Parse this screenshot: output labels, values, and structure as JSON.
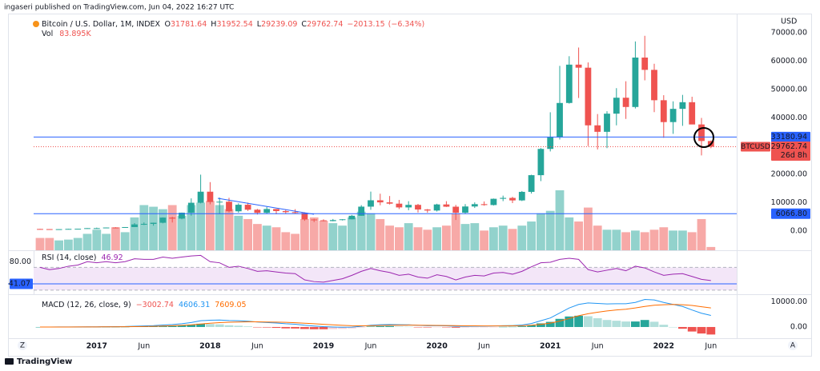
{
  "header": "ingaseri published on TradingView.com, Jun 04, 2022 16:27 UTC",
  "footer": "TradingView",
  "buttons": [
    "Z",
    "A"
  ],
  "chart_data": [
    {
      "type": "candlestick",
      "title": "Bitcoin / U.S. Dollar, 1M, INDEX",
      "axis_unit": "USD",
      "ohlc_labels": [
        "O",
        "H",
        "L",
        "C"
      ],
      "change": {
        "value": -2013.15,
        "label": "−2013.15"
      },
      "change_pct": {
        "value": -6.34,
        "label": "(−6.34%)"
      },
      "volume_name": "Vol",
      "volume_value_label": "83.895K",
      "up_color": "#26a69a",
      "down_color": "#ef5350",
      "volume_up_color": "#92d2cc",
      "volume_down_color": "#f7a9a7",
      "x": [
        "2016-07",
        "2016-08",
        "2016-09",
        "2016-10",
        "2016-11",
        "2016-12",
        "2017-01",
        "2017-02",
        "2017-03",
        "2017-04",
        "2017-05",
        "2017-06",
        "2017-07",
        "2017-08",
        "2017-09",
        "2017-10",
        "2017-11",
        "2017-12",
        "2018-01",
        "2018-02",
        "2018-03",
        "2018-04",
        "2018-05",
        "2018-06",
        "2018-07",
        "2018-08",
        "2018-09",
        "2018-10",
        "2018-11",
        "2018-12",
        "2019-01",
        "2019-02",
        "2019-03",
        "2019-04",
        "2019-05",
        "2019-06",
        "2019-07",
        "2019-08",
        "2019-09",
        "2019-10",
        "2019-11",
        "2019-12",
        "2020-01",
        "2020-02",
        "2020-03",
        "2020-04",
        "2020-05",
        "2020-06",
        "2020-07",
        "2020-08",
        "2020-09",
        "2020-10",
        "2020-11",
        "2020-12",
        "2021-01",
        "2021-02",
        "2021-03",
        "2021-04",
        "2021-05",
        "2021-06",
        "2021-07",
        "2021-08",
        "2021-09",
        "2021-10",
        "2021-11",
        "2021-12",
        "2022-01",
        "2022-02",
        "2022-03",
        "2022-04",
        "2022-05",
        "2022-06"
      ],
      "open": [
        673,
        624,
        574,
        609,
        700,
        745,
        964,
        970,
        1190,
        1080,
        1350,
        2290,
        2480,
        2875,
        4700,
        4340,
        6440,
        9950,
        13860,
        10220,
        10320,
        6930,
        9240,
        7490,
        6390,
        7730,
        7010,
        6630,
        6370,
        4040,
        3740,
        3460,
        3820,
        4100,
        5350,
        8570,
        10820,
        10090,
        9630,
        8300,
        9200,
        7560,
        7200,
        9350,
        8550,
        6430,
        8630,
        9450,
        9140,
        11350,
        11660,
        10780,
        13800,
        19700,
        28990,
        33110,
        45240,
        58800,
        57720,
        37330,
        35040,
        41460,
        47100,
        43820,
        61300,
        56950,
        46210,
        38480,
        43160,
        45510,
        37640,
        31781.64
      ],
      "high": [
        704,
        626,
        629,
        720,
        752,
        980,
        1150,
        1210,
        1300,
        1350,
        2760,
        3000,
        2920,
        4770,
        5000,
        6470,
        11500,
        19890,
        17250,
        11790,
        11700,
        9760,
        10000,
        7760,
        8500,
        7760,
        7410,
        7680,
        6590,
        4290,
        4110,
        4210,
        4140,
        5640,
        9100,
        13880,
        13150,
        12330,
        10950,
        10500,
        9540,
        7750,
        9590,
        10500,
        9190,
        9470,
        10080,
        10400,
        11450,
        12470,
        12050,
        14100,
        19860,
        29300,
        41950,
        58350,
        61780,
        64850,
        59580,
        41330,
        42320,
        50480,
        52920,
        67000,
        69000,
        59100,
        47990,
        45820,
        48100,
        47450,
        39950,
        31952.54
      ],
      "low": [
        605,
        470,
        569,
        603,
        687,
        741,
        750,
        920,
        890,
        1060,
        1340,
        2070,
        1830,
        2670,
        2970,
        4110,
        5380,
        9730,
        9400,
        5950,
        6530,
        6440,
        7050,
        5780,
        6070,
        5880,
        6110,
        6180,
        3560,
        3120,
        3350,
        3390,
        3690,
        4070,
        5330,
        7450,
        9060,
        9330,
        7710,
        7300,
        6520,
        6430,
        6850,
        8460,
        3850,
        6150,
        8110,
        8900,
        8980,
        10520,
        9820,
        10550,
        13200,
        17600,
        28100,
        32300,
        45000,
        47000,
        30000,
        28800,
        29280,
        37330,
        39600,
        43290,
        53250,
        42000,
        32920,
        34320,
        37150,
        37690,
        26700,
        29239.09
      ],
      "close": [
        624,
        574,
        609,
        700,
        745,
        964,
        970,
        1190,
        1080,
        1350,
        2290,
        2480,
        2875,
        4700,
        4340,
        6440,
        9950,
        13860,
        10220,
        10320,
        6930,
        9240,
        7490,
        6390,
        7730,
        7010,
        6630,
        6370,
        4040,
        3740,
        3460,
        3820,
        4100,
        5350,
        8570,
        10820,
        10090,
        9630,
        8300,
        9200,
        7560,
        7200,
        9350,
        8550,
        6430,
        8630,
        9450,
        9140,
        11350,
        11660,
        10780,
        13800,
        19700,
        28990,
        33110,
        45240,
        58800,
        57720,
        37330,
        35040,
        41460,
        47100,
        43820,
        61300,
        56950,
        46210,
        38480,
        43160,
        45510,
        37640,
        31790,
        29762.74
      ],
      "volume": [
        315000,
        315000,
        252000,
        273000,
        315000,
        420000,
        525000,
        420000,
        588000,
        462000,
        840000,
        1155000,
        1113000,
        1050000,
        1155000,
        882000,
        1155000,
        1218000,
        1260000,
        1155000,
        1050000,
        882000,
        798000,
        672000,
        630000,
        588000,
        462000,
        420000,
        798000,
        840000,
        756000,
        693000,
        630000,
        840000,
        987000,
        945000,
        798000,
        630000,
        588000,
        693000,
        588000,
        525000,
        588000,
        630000,
        945000,
        672000,
        693000,
        504000,
        588000,
        630000,
        546000,
        630000,
        735000,
        945000,
        1008000,
        1533000,
        840000,
        735000,
        1092000,
        630000,
        525000,
        525000,
        462000,
        504000,
        462000,
        525000,
        588000,
        504000,
        504000,
        462000,
        798000,
        83895
      ],
      "ylim": [
        -6857,
        76571
      ],
      "yticks": [
        {
          "value": 0,
          "label": "0.00"
        },
        {
          "value": 10000,
          "label": "10000.00"
        },
        {
          "value": 20000,
          "label": "20000.00"
        },
        {
          "value": 40000,
          "label": "40000.00"
        },
        {
          "value": 50000,
          "label": "50000.00"
        },
        {
          "value": 60000,
          "label": "60000.00"
        },
        {
          "value": 70000,
          "label": "70000.00"
        }
      ],
      "xticks": [
        {
          "value": "2017-01",
          "label": "2017"
        },
        {
          "value": "2017-06",
          "label": "Jun"
        },
        {
          "value": "2018-01",
          "label": "2018"
        },
        {
          "value": "2018-06",
          "label": "Jun"
        },
        {
          "value": "2019-01",
          "label": "2019"
        },
        {
          "value": "2019-06",
          "label": "Jun"
        },
        {
          "value": "2020-01",
          "label": "2020"
        },
        {
          "value": "2020-06",
          "label": "Jun"
        },
        {
          "value": "2021-01",
          "label": "2021"
        },
        {
          "value": "2021-06",
          "label": "Jun"
        },
        {
          "value": "2022-01",
          "label": "2022"
        },
        {
          "value": "2022-06",
          "label": "Jun"
        }
      ],
      "price_lines": [
        {
          "value": 33180.94,
          "color": "#2962ff"
        },
        {
          "value": 6066.8,
          "label": "6066.80",
          "color": "#2962ff"
        }
      ],
      "symbol": "BTCUSD",
      "countdown": "26d 8h"
    },
    {
      "type": "line",
      "name": "RSI (14, close)",
      "color": "#9c27b0",
      "values": [
        70,
        66,
        68,
        72,
        74,
        80,
        78,
        80,
        78,
        80,
        85,
        84,
        84,
        88,
        86,
        88,
        90,
        91,
        80,
        78,
        70,
        72,
        68,
        63,
        64,
        62,
        60,
        59,
        48,
        45,
        44,
        47,
        50,
        56,
        63,
        68,
        64,
        61,
        56,
        58,
        53,
        51,
        57,
        54,
        48,
        53,
        56,
        55,
        60,
        61,
        58,
        63,
        71,
        78,
        79,
        84,
        86,
        84,
        66,
        62,
        65,
        68,
        64,
        72,
        69,
        62,
        56,
        58,
        59,
        54,
        49,
        46.92
      ],
      "ylim": [
        20,
        100
      ],
      "yticks": [
        {
          "value": 80,
          "label": "80.00"
        }
      ],
      "band": [
        30,
        70
      ],
      "band_color": "#f3e6f8",
      "hline": {
        "value": 41.07,
        "color": "#2962ff"
      }
    },
    {
      "type": "macd",
      "name": "MACD (12, 26, close, 9)",
      "histogram": [
        0,
        3,
        5,
        12,
        15,
        35,
        40,
        50,
        50,
        70,
        150,
        230,
        270,
        420,
        500,
        650,
        950,
        1300,
        1200,
        1050,
        700,
        500,
        250,
        -50,
        -200,
        -350,
        -550,
        -600,
        -800,
        -900,
        -900,
        -850,
        -750,
        -550,
        -200,
        200,
        320,
        350,
        200,
        120,
        -70,
        -180,
        -140,
        -150,
        -280,
        -230,
        -150,
        -120,
        -10,
        70,
        100,
        280,
        700,
        1450,
        2050,
        3250,
        4200,
        4500,
        4300,
        3500,
        2800,
        2500,
        2200,
        2200,
        2800,
        2100,
        900,
        0,
        -700,
        -1800,
        -2600,
        -3002.74
      ],
      "histogram_value_label": "−3002.74",
      "histogram_colors": [
        "#26a69a",
        "#b2dfdb",
        "#ffcdd2",
        "#ef5350"
      ],
      "macd": {
        "color": "#2196f3",
        "values": [
          0,
          5,
          10,
          20,
          30,
          60,
          80,
          110,
          130,
          170,
          300,
          430,
          540,
          800,
          1000,
          1300,
          1800,
          2500,
          2700,
          2800,
          2600,
          2500,
          2300,
          2000,
          1800,
          1600,
          1300,
          1100,
          700,
          400,
          150,
          0,
          -100,
          -50,
          250,
          700,
          900,
          1000,
          900,
          850,
          650,
          500,
          500,
          450,
          250,
          250,
          300,
          300,
          400,
          500,
          550,
          800,
          1400,
          2500,
          3600,
          5600,
          7600,
          9000,
          9600,
          9400,
          9200,
          9300,
          9300,
          9800,
          11000,
          10800,
          9800,
          9000,
          8200,
          6800,
          5500,
          4606.31
        ]
      },
      "signal": {
        "color": "#ff6d00",
        "values": [
          0,
          2,
          5,
          8,
          15,
          25,
          40,
          60,
          80,
          100,
          150,
          200,
          270,
          380,
          500,
          650,
          850,
          1200,
          1500,
          1750,
          1900,
          2000,
          2050,
          2050,
          2000,
          1950,
          1850,
          1700,
          1500,
          1300,
          1050,
          850,
          650,
          500,
          450,
          500,
          580,
          650,
          700,
          730,
          720,
          680,
          640,
          600,
          530,
          480,
          450,
          420,
          410,
          430,
          450,
          520,
          700,
          1050,
          1550,
          2350,
          3400,
          4500,
          5300,
          5900,
          6400,
          6800,
          7100,
          7600,
          8200,
          8700,
          8900,
          9000,
          8900,
          8600,
          8100,
          7609.05
        ]
      },
      "ylim": [
        -4480,
        12760
      ],
      "yticks": [
        {
          "value": 10000,
          "label": "10000.00"
        },
        {
          "value": 0,
          "label": "0.00"
        }
      ]
    }
  ]
}
